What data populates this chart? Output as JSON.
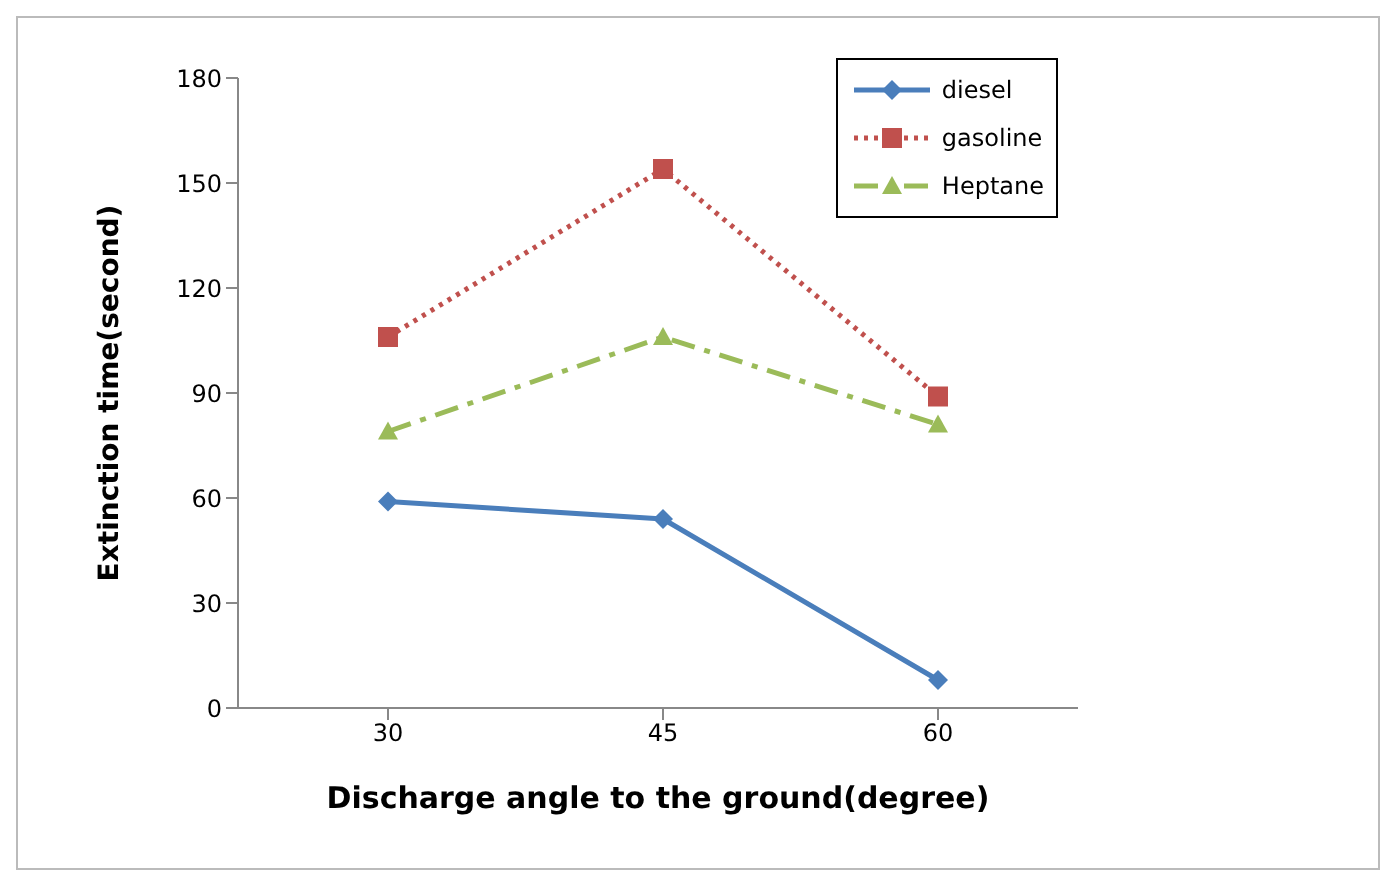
{
  "chart_data": {
    "type": "line",
    "xlabel": "Discharge angle to the ground(degree)",
    "ylabel": "Extinction time(second)",
    "categories": [
      "30",
      "45",
      "60"
    ],
    "ylim": [
      0,
      180
    ],
    "yticks": [
      0,
      30,
      60,
      90,
      120,
      150,
      180
    ],
    "grid": false,
    "legend": "top right",
    "series": [
      {
        "name": "diesel",
        "color": "#4a7ebb",
        "values": [
          59,
          54,
          8
        ],
        "marker": "diamond",
        "line_style": "solid"
      },
      {
        "name": "gasoline",
        "color": "#c0504d",
        "values": [
          106,
          154,
          89
        ],
        "marker": "square",
        "line_style": "dotted"
      },
      {
        "name": "Heptane",
        "color": "#9bbb59",
        "values": [
          79,
          106,
          81
        ],
        "marker": "triangle",
        "line_style": "dashed"
      }
    ]
  }
}
